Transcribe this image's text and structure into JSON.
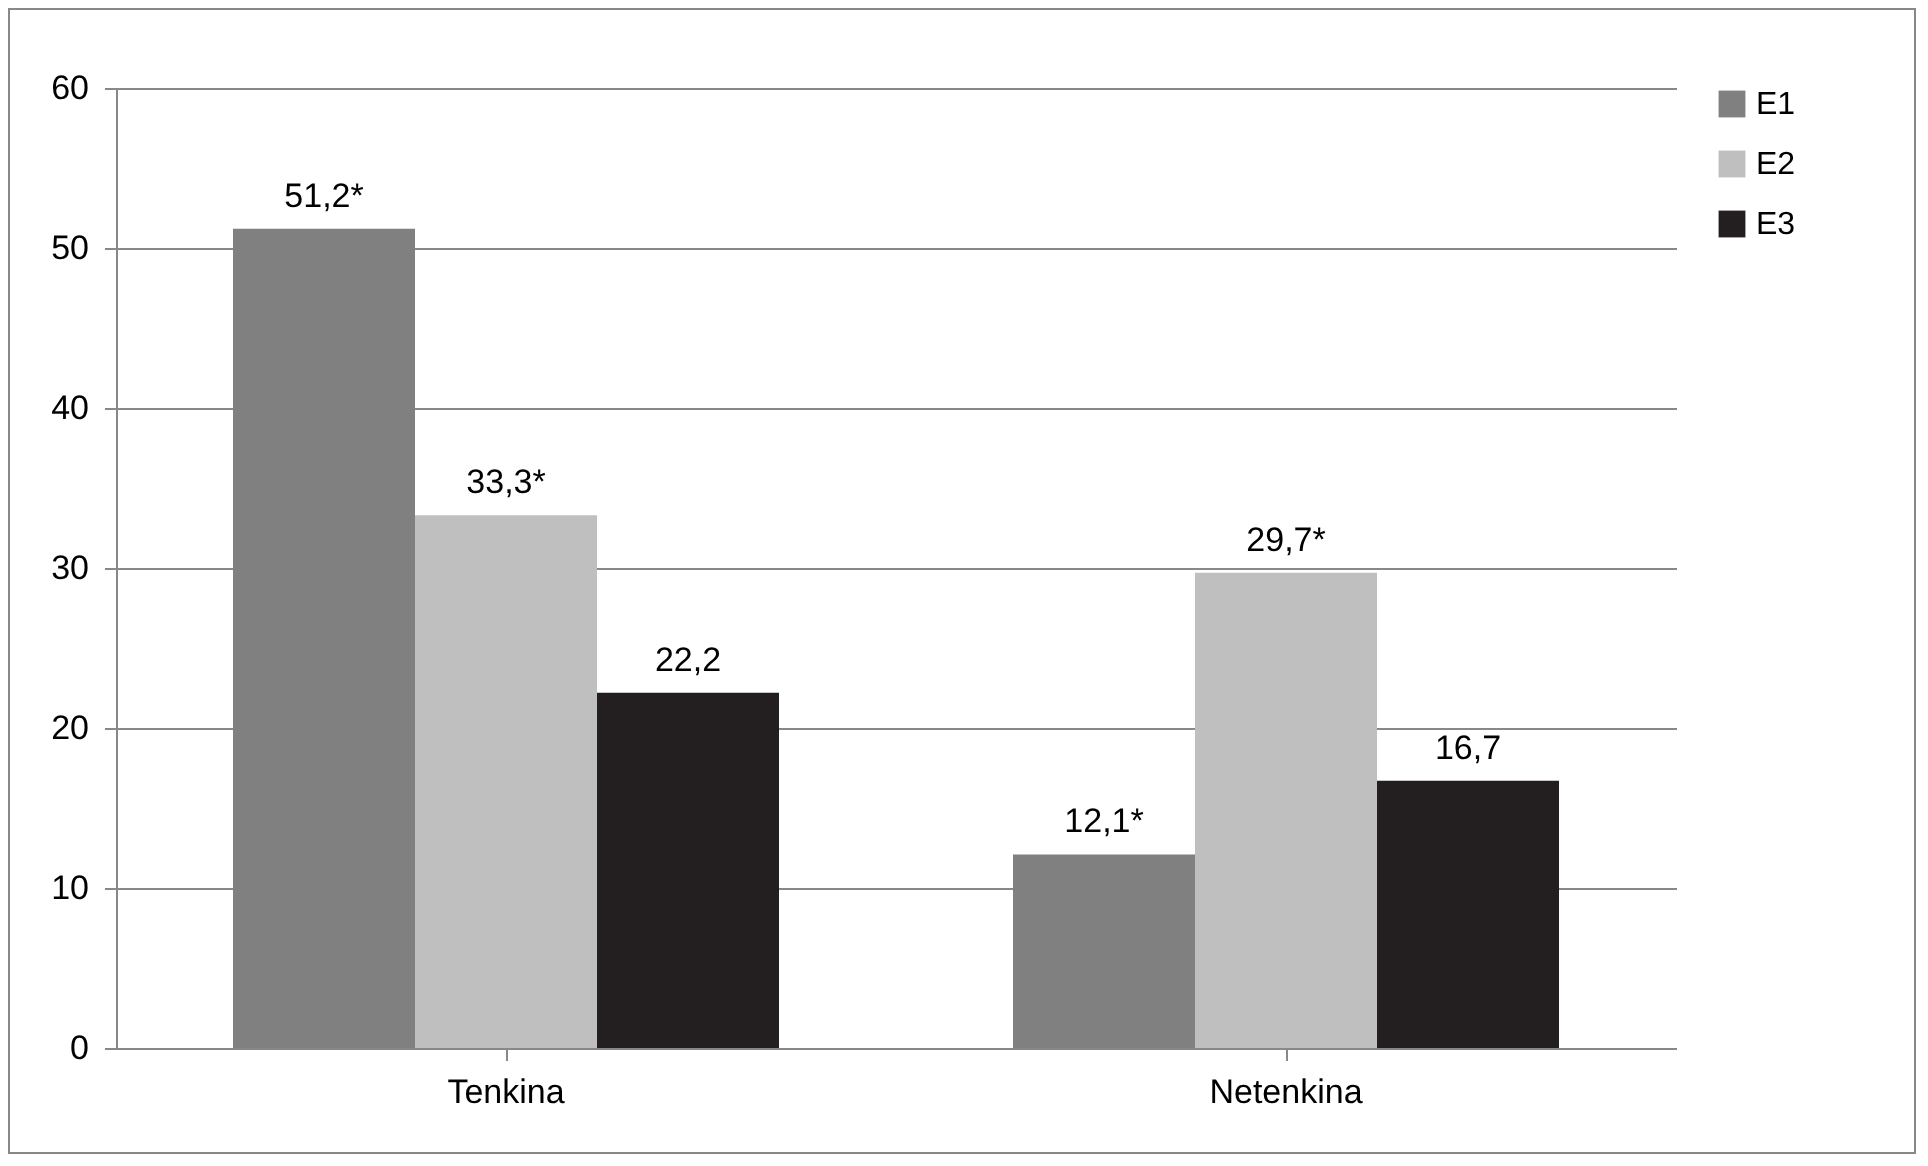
{
  "chart_data": {
    "type": "bar",
    "categories": [
      "Tenkina",
      "Netenkina"
    ],
    "series": [
      {
        "name": "E1",
        "color": "#808080",
        "values": [
          51.2,
          12.1
        ],
        "value_labels": [
          "51,2*",
          "12,1*"
        ]
      },
      {
        "name": "E2",
        "color": "#bfbfbf",
        "values": [
          33.3,
          29.7
        ],
        "value_labels": [
          "33,3*",
          "29,7*"
        ]
      },
      {
        "name": "E3",
        "color": "#231f20",
        "values": [
          22.2,
          16.7
        ],
        "value_labels": [
          "22,2",
          "16,7"
        ]
      }
    ],
    "ylim": [
      0,
      60
    ],
    "yticks": [
      0,
      10,
      20,
      30,
      40,
      50,
      60
    ],
    "grid": "y",
    "legend": "right"
  }
}
